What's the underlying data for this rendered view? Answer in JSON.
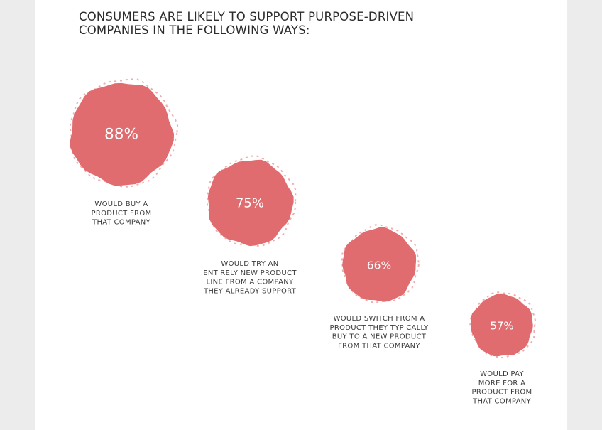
{
  "title_lines": [
    "CONSUMERS ARE LIKELY TO SUPPORT PURPOSE-DRIVEN",
    "COMPANIES IN THE FOLLOWING WAYS:"
  ],
  "colors": {
    "bubble": "#e06c6f",
    "background": "#ffffff",
    "text": "#2b2b2b"
  },
  "chart_data": {
    "type": "bubble",
    "title": "CONSUMERS ARE LIKELY TO SUPPORT PURPOSE-DRIVEN COMPANIES IN THE FOLLOWING WAYS:",
    "unit": "%",
    "points": [
      {
        "value": 88,
        "label": "88%",
        "caption": [
          "WOULD BUY A",
          "PRODUCT FROM",
          "THAT COMPANY"
        ]
      },
      {
        "value": 75,
        "label": "75%",
        "caption": [
          "WOULD TRY AN",
          "ENTIRELY NEW PRODUCT",
          "LINE FROM A COMPANY",
          "THEY ALREADY SUPPORT"
        ]
      },
      {
        "value": 66,
        "label": "66%",
        "caption": [
          "WOULD SWITCH FROM A",
          "PRODUCT THEY TYPICALLY",
          "BUY TO A NEW PRODUCT",
          "FROM THAT COMPANY"
        ]
      },
      {
        "value": 57,
        "label": "57%",
        "caption": [
          "WOULD PAY",
          "MORE FOR A",
          "PRODUCT FROM",
          "THAT COMPANY"
        ]
      }
    ]
  }
}
